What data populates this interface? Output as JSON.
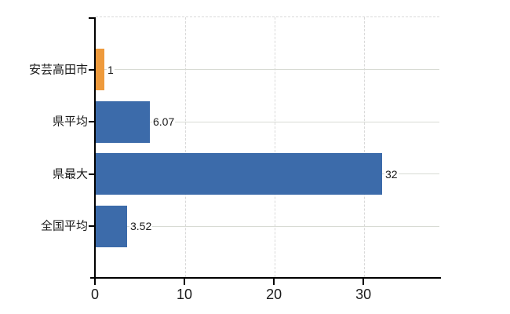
{
  "chart_data": {
    "type": "bar",
    "orientation": "horizontal",
    "categories": [
      "安芸高田市",
      "県平均",
      "県最大",
      "全国平均"
    ],
    "values": [
      1,
      6.07,
      32,
      3.52
    ],
    "value_labels": [
      "1",
      "6.07",
      "32",
      "3.52"
    ],
    "series": [
      {
        "name": "value",
        "values": [
          1,
          6.07,
          32,
          3.52
        ]
      }
    ],
    "bar_colors": [
      "#EE9A3C",
      "#3C6BAA",
      "#3C6BAA",
      "#3C6BAA"
    ],
    "xlim": [
      0,
      38.4
    ],
    "xticks": [
      0,
      10,
      20,
      30
    ],
    "xtick_labels": [
      "0",
      "10",
      "20",
      "30"
    ],
    "grid": true,
    "gridline_solid_axis": "y",
    "gridline_dashed_axis": "x",
    "legend_position": "none",
    "title": "",
    "xlabel": "",
    "ylabel": "",
    "colors": {
      "background": "#FFFFFF",
      "axis": "#000000",
      "gridline": "#D9D9D9",
      "text": "#1A1A1A",
      "highlight_bar": "#EE9A3C",
      "default_bar": "#3C6BAA"
    }
  }
}
